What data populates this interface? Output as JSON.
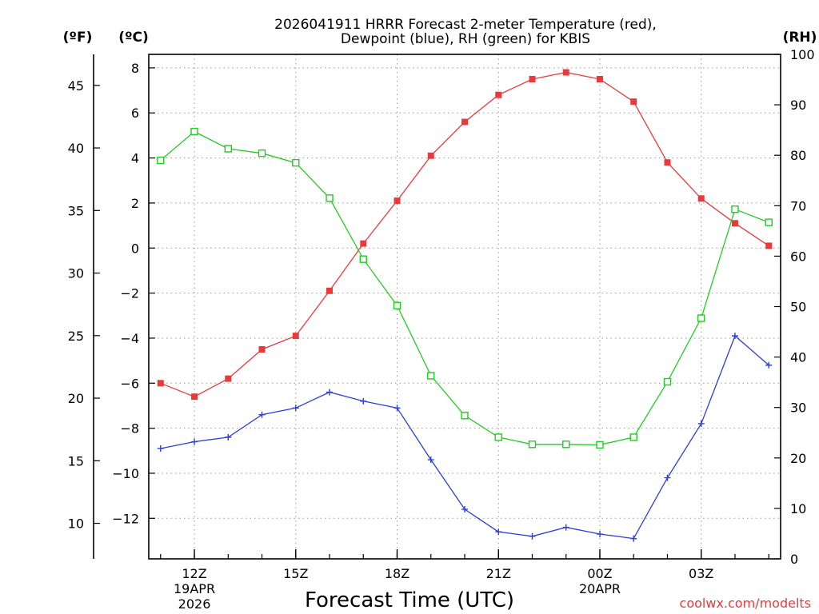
{
  "chart_data": {
    "type": "line",
    "title_lines": [
      "2026041911 HRRR Forecast 2-meter Temperature (red),",
      "Dewpoint (blue), RH (green) for KBIS"
    ],
    "xlabel": "Forecast Time (UTC)",
    "credit": "coolwx.com/modelts",
    "units": {
      "fahrenheit": "(ºF)",
      "celsius": "(ºC)",
      "rh": "(RH)"
    },
    "x_hours": [
      0,
      1,
      2,
      3,
      4,
      5,
      6,
      7,
      8,
      9,
      10,
      11,
      12,
      13,
      14,
      15,
      16,
      17,
      18
    ],
    "x_range": [
      -0.35,
      18.35
    ],
    "x_ticks": [
      {
        "h": 1,
        "label": "12Z",
        "sub1": "19APR",
        "sub2": "2026"
      },
      {
        "h": 4,
        "label": "15Z"
      },
      {
        "h": 7,
        "label": "18Z"
      },
      {
        "h": 10,
        "label": "21Z"
      },
      {
        "h": 13,
        "label": "00Z",
        "sub1": "20APR"
      },
      {
        "h": 16,
        "label": "03Z"
      }
    ],
    "y_celsius": {
      "range": [
        -13.8,
        8.6
      ],
      "ticks": [
        {
          "v": 8,
          "label": "8"
        },
        {
          "v": 6,
          "label": "6"
        },
        {
          "v": 4,
          "label": "4"
        },
        {
          "v": 2,
          "label": "2"
        },
        {
          "v": 0,
          "label": "0"
        },
        {
          "v": -2,
          "label": "−2"
        },
        {
          "v": -4,
          "label": "−4"
        },
        {
          "v": -6,
          "label": "−6"
        },
        {
          "v": -8,
          "label": "−8"
        },
        {
          "v": -10,
          "label": "−10"
        },
        {
          "v": -12,
          "label": "−12"
        }
      ]
    },
    "y_fahrenheit": {
      "ticks": [
        {
          "v": 45,
          "label": "45"
        },
        {
          "v": 40,
          "label": "40"
        },
        {
          "v": 35,
          "label": "35"
        },
        {
          "v": 30,
          "label": "30"
        },
        {
          "v": 25,
          "label": "25"
        },
        {
          "v": 20,
          "label": "20"
        },
        {
          "v": 15,
          "label": "15"
        },
        {
          "v": 10,
          "label": "10"
        }
      ]
    },
    "y_rh": {
      "range": [
        0,
        100
      ],
      "ticks": [
        {
          "v": 100,
          "label": "100"
        },
        {
          "v": 90,
          "label": "90"
        },
        {
          "v": 80,
          "label": "80"
        },
        {
          "v": 70,
          "label": "70"
        },
        {
          "v": 60,
          "label": "60"
        },
        {
          "v": 50,
          "label": "50"
        },
        {
          "v": 40,
          "label": "40"
        },
        {
          "v": 30,
          "label": "30"
        },
        {
          "v": 20,
          "label": "20"
        },
        {
          "v": 10,
          "label": "10"
        },
        {
          "v": 0,
          "label": "0"
        }
      ]
    },
    "series": [
      {
        "name": "Temperature",
        "axis": "celsius",
        "color": "#e83a3a",
        "marker": "filled-square",
        "values": [
          -6.0,
          -6.6,
          -5.8,
          -4.5,
          -3.9,
          -1.9,
          0.2,
          2.1,
          4.1,
          5.6,
          6.8,
          7.5,
          7.8,
          7.5,
          6.5,
          3.8,
          2.2,
          1.1,
          0.1
        ]
      },
      {
        "name": "Dewpoint",
        "axis": "celsius",
        "color": "#2c3fd8",
        "marker": "plus",
        "values": [
          -8.9,
          -8.6,
          -8.4,
          -7.4,
          -7.1,
          -6.4,
          -6.8,
          -7.1,
          -9.4,
          -11.6,
          -12.6,
          -12.8,
          -12.4,
          -12.7,
          -12.9,
          -10.2,
          -7.8,
          -3.9,
          -5.2
        ]
      },
      {
        "name": "Relative Humidity",
        "axis": "rh",
        "color": "#22cc22",
        "marker": "open-square",
        "values": [
          79.0,
          84.7,
          81.3,
          80.4,
          78.5,
          71.5,
          59.4,
          50.2,
          36.3,
          28.4,
          24.1,
          22.7,
          22.7,
          22.6,
          24.1,
          35.1,
          47.7,
          69.3,
          66.7
        ]
      }
    ]
  }
}
